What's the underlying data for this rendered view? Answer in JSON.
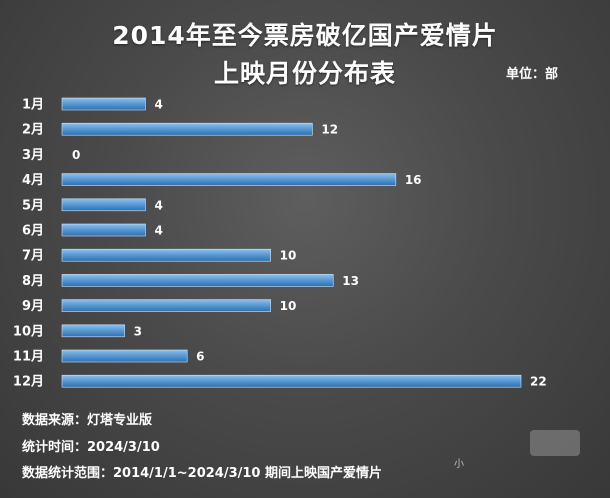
{
  "title_line1": "2014年至今票房破亿国产爱情片",
  "title_line2": "上映月份分布表",
  "unit_label": "单位：部",
  "footer": {
    "source": "数据来源：灯塔专业版",
    "time": "统计时间：2024/3/10",
    "range": "数据统计范围：2014/1/1~2024/3/10 期间上映国产爱情片"
  },
  "watermark_text": "小",
  "chart_data": {
    "type": "bar",
    "orientation": "horizontal",
    "categories": [
      "1月",
      "2月",
      "3月",
      "4月",
      "5月",
      "6月",
      "7月",
      "8月",
      "9月",
      "10月",
      "11月",
      "12月"
    ],
    "values": [
      4,
      12,
      0,
      16,
      4,
      4,
      10,
      13,
      10,
      3,
      6,
      22
    ],
    "xlim": [
      0,
      22
    ],
    "grid": false,
    "colors": {
      "bar": "#5b9bd5",
      "bar_dark": "#2f6fae",
      "text": "#ffffff"
    }
  }
}
